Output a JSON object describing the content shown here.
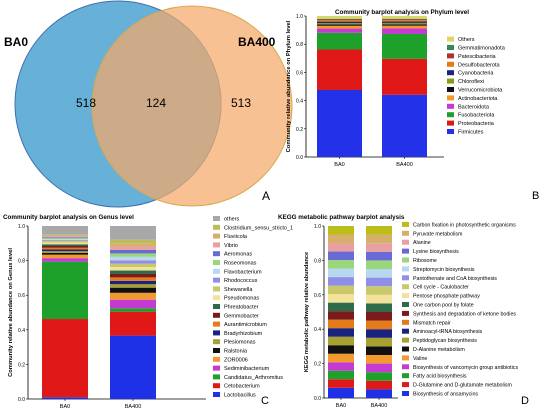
{
  "chart_data": [
    {
      "panel": "A",
      "type": "venn",
      "sets": [
        {
          "name": "BA0",
          "color": "#5aaad6"
        },
        {
          "name": "BA400",
          "color": "#f5a969"
        }
      ],
      "values": {
        "only_BA0": 518,
        "shared": 124,
        "only_BA400": 513
      },
      "panel_label": "A"
    },
    {
      "panel": "B",
      "type": "bar",
      "stacked": true,
      "title": "Community barplot analysis on Phylum level",
      "ylabel": "Community relative abundance on Phylum level",
      "ylim": [
        0,
        1
      ],
      "yticks": [
        "0.0",
        "0.2",
        "0.4",
        "0.6",
        "0.8",
        "1.0"
      ],
      "categories": [
        "BA0",
        "BA400"
      ],
      "series": [
        {
          "name": "Firmicutes",
          "color": "#2332e8",
          "values": [
            0.48,
            0.45
          ]
        },
        {
          "name": "Proteobacteria",
          "color": "#e01818",
          "values": [
            0.29,
            0.26
          ]
        },
        {
          "name": "Fusobacteriota",
          "color": "#1ea12a",
          "values": [
            0.12,
            0.18
          ]
        },
        {
          "name": "Bacteroidota",
          "color": "#c53ad3",
          "values": [
            0.03,
            0.04
          ]
        },
        {
          "name": "Actinobacteriota",
          "color": "#f29a2f",
          "values": [
            0.02,
            0.02
          ]
        },
        {
          "name": "Verrucomicrobiota",
          "color": "#111111",
          "values": [
            0.01,
            0.01
          ]
        },
        {
          "name": "Chloroflexi",
          "color": "#8a9b1a",
          "values": [
            0.01,
            0.01
          ]
        },
        {
          "name": "Cyanobacteria",
          "color": "#1a237e",
          "values": [
            0.01,
            0.01
          ]
        },
        {
          "name": "Desulfobacterota",
          "color": "#e57a1a",
          "values": [
            0.01,
            0.01
          ]
        },
        {
          "name": "Patescibacteria",
          "color": "#b03030",
          "values": [
            0.005,
            0.005
          ]
        },
        {
          "name": "Gemmatimonadota",
          "color": "#2e8b57",
          "values": [
            0.005,
            0.005
          ]
        },
        {
          "name": "Others",
          "color": "#d9d66a",
          "values": [
            0.02,
            0.02
          ]
        }
      ],
      "panel_label": "B"
    },
    {
      "panel": "C",
      "type": "bar",
      "stacked": true,
      "title": "Community barplot analysis on Genus level",
      "ylabel": "Community relative abundance on Genus level",
      "ylim": [
        0,
        1
      ],
      "yticks": [
        "0.0",
        "0.2",
        "0.4",
        "0.6",
        "0.8",
        "1.0"
      ],
      "categories": [
        "BA0",
        "BA400"
      ],
      "series": [
        {
          "name": "Lactobacillus",
          "color": "#1f31e6",
          "values": [
            0.01,
            0.37
          ]
        },
        {
          "name": "Cetobacterium",
          "color": "#e01818",
          "values": [
            0.45,
            0.14
          ]
        },
        {
          "name": "Candidatus_Arthromitus",
          "color": "#1ea12a",
          "values": [
            0.33,
            0.02
          ]
        },
        {
          "name": "Sediminibacterium",
          "color": "#c53ad3",
          "values": [
            0.02,
            0.05
          ]
        },
        {
          "name": "ZOR0006",
          "color": "#f29a2f",
          "values": [
            0.02,
            0.04
          ]
        },
        {
          "name": "Ralstonia",
          "color": "#111111",
          "values": [
            0.01,
            0.03
          ]
        },
        {
          "name": "Plesiomonas",
          "color": "#a7a12f",
          "values": [
            0.01,
            0.02
          ]
        },
        {
          "name": "Bradyrhizobium",
          "color": "#1a237e",
          "values": [
            0.01,
            0.02
          ]
        },
        {
          "name": "Aurantimicrobium",
          "color": "#e57a1a",
          "values": [
            0.01,
            0.02
          ]
        },
        {
          "name": "Gemmobacter",
          "color": "#7a1a1a",
          "values": [
            0.01,
            0.02
          ]
        },
        {
          "name": "Phreatobacter",
          "color": "#2e6b4a",
          "values": [
            0.01,
            0.02
          ]
        },
        {
          "name": "Pseudomonas",
          "color": "#f3e39a",
          "values": [
            0.01,
            0.02
          ]
        },
        {
          "name": "Shewanella",
          "color": "#c9c96b",
          "values": [
            0.01,
            0.02
          ]
        },
        {
          "name": "Rhodococcus",
          "color": "#8f8fe8",
          "values": [
            0.005,
            0.02
          ]
        },
        {
          "name": "Flavobacterium",
          "color": "#b7d8f0",
          "values": [
            0.005,
            0.02
          ]
        },
        {
          "name": "Roseomonas",
          "color": "#9ad67a",
          "values": [
            0.005,
            0.02
          ]
        },
        {
          "name": "Aeromonas",
          "color": "#6a6ad6",
          "values": [
            0.005,
            0.02
          ]
        },
        {
          "name": "Vibrio",
          "color": "#e8a0a0",
          "values": [
            0.005,
            0.02
          ]
        },
        {
          "name": "Fluviicola",
          "color": "#d6b06a",
          "values": [
            0.005,
            0.02
          ]
        },
        {
          "name": "Clostridium_sensu_stricto_1",
          "color": "#bcbc5a",
          "values": [
            0.005,
            0.02
          ]
        },
        {
          "name": "others",
          "color": "#a8a8a8",
          "values": [
            0.05,
            0.08
          ]
        }
      ],
      "panel_label": "C"
    },
    {
      "panel": "D",
      "type": "bar",
      "stacked": true,
      "title": "KEGG  metabolic pathway barplot analysis",
      "ylabel": "KEGG  metabolic pathway relative abundance",
      "ylim": [
        0,
        1
      ],
      "yticks": [
        "0.0",
        "0.2",
        "0.4",
        "0.6",
        "0.8",
        "1.0"
      ],
      "categories": [
        "BA0",
        "BA400"
      ],
      "series": [
        {
          "name": "Biosynthesis of ansamycins",
          "color": "#1f31e6",
          "values": [
            0.06,
            0.05
          ]
        },
        {
          "name": "D-Glutamine and D-glutamate metabolism",
          "color": "#e01818",
          "values": [
            0.05,
            0.05
          ]
        },
        {
          "name": "Fatty acid biosynthesis",
          "color": "#1ea12a",
          "values": [
            0.05,
            0.05
          ]
        },
        {
          "name": "Biosynthesis of vancomycin group antibiotics",
          "color": "#c53ad3",
          "values": [
            0.05,
            0.05
          ]
        },
        {
          "name": "Valine",
          "color": "#f29a2f",
          "values": [
            0.05,
            0.05
          ]
        },
        {
          "name": "D-Alanine metabolism",
          "color": "#111111",
          "values": [
            0.05,
            0.05
          ]
        },
        {
          "name": "Peptidoglycan biosynthesis",
          "color": "#a7a12f",
          "values": [
            0.05,
            0.05
          ]
        },
        {
          "name": "Aminoacyl-tRNA biosynthesis",
          "color": "#1a237e",
          "values": [
            0.05,
            0.05
          ]
        },
        {
          "name": "Mismatch repair",
          "color": "#e57a1a",
          "values": [
            0.05,
            0.05
          ]
        },
        {
          "name": "Synthesis and degradation of ketone bodies",
          "color": "#7a1a1a",
          "values": [
            0.05,
            0.05
          ]
        },
        {
          "name": "One carbon pool by folate",
          "color": "#2e6b4a",
          "values": [
            0.05,
            0.05
          ]
        },
        {
          "name": "Pentose phosphate pathway",
          "color": "#f3e39a",
          "values": [
            0.05,
            0.05
          ]
        },
        {
          "name": "Cell cycle - Caulobacter",
          "color": "#c9c96b",
          "values": [
            0.05,
            0.05
          ]
        },
        {
          "name": "Pantothenate and CoA biosynthesis",
          "color": "#8f8fe8",
          "values": [
            0.05,
            0.05
          ]
        },
        {
          "name": "Streptomycin biosynthesis",
          "color": "#b7d8f0",
          "values": [
            0.05,
            0.05
          ]
        },
        {
          "name": "Ribosome",
          "color": "#9ad67a",
          "values": [
            0.05,
            0.05
          ]
        },
        {
          "name": "Lysine biosynthesis",
          "color": "#6a6ad6",
          "values": [
            0.05,
            0.05
          ]
        },
        {
          "name": "Alanine",
          "color": "#e8a0a0",
          "values": [
            0.05,
            0.05
          ]
        },
        {
          "name": "Pyruvate metabolism",
          "color": "#d6b06a",
          "values": [
            0.05,
            0.05
          ]
        },
        {
          "name": "Carbon fixation in photosynthetic organisms",
          "color": "#bcbc1a",
          "values": [
            0.05,
            0.05
          ]
        }
      ],
      "panel_label": "D"
    }
  ]
}
